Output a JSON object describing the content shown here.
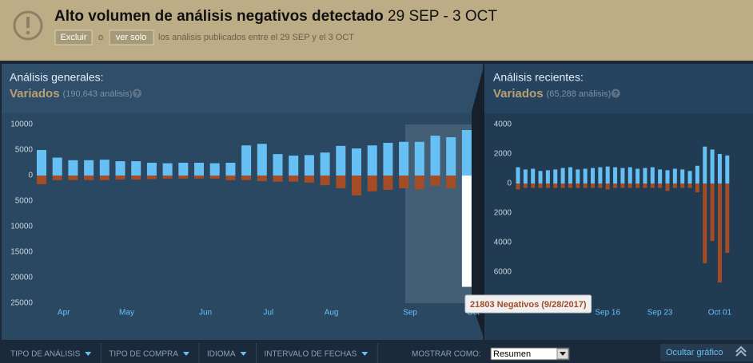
{
  "banner": {
    "title": "Alto volumen de análisis negativos detectado",
    "range": "29 SEP - 3 OCT",
    "exclude": "Excluir",
    "or": "o",
    "only": "ver solo",
    "note": "los análisis publicados entre el 29 SEP y el 3 OCT"
  },
  "chart_data": [
    {
      "type": "bar",
      "heading": "Análisis generales:",
      "rating": "Variados",
      "count": "(190,643 análisis)",
      "help": "?",
      "categories": [
        null,
        "Apr",
        null,
        null,
        null,
        "May",
        null,
        null,
        null,
        null,
        "Jun",
        null,
        null,
        null,
        "Jul",
        null,
        null,
        null,
        "Aug",
        null,
        null,
        null,
        null,
        "Sep",
        null,
        null,
        null,
        "Oct"
      ],
      "series": [
        {
          "color": "#66c0f4",
          "values": [
            5000,
            3500,
            3000,
            3000,
            3100,
            2800,
            2800,
            2500,
            2400,
            2500,
            2500,
            2400,
            2500,
            5900,
            6200,
            4200,
            3900,
            4000,
            4500,
            5800,
            5300,
            5900,
            6400,
            6600,
            6600,
            7800,
            7500,
            8900
          ]
        },
        {
          "color": "#a34c25",
          "values": [
            -1700,
            -900,
            -900,
            -900,
            -900,
            -800,
            -800,
            -700,
            -600,
            -600,
            -600,
            -600,
            -900,
            -900,
            -1100,
            -1200,
            -1200,
            -1400,
            -1900,
            -2500,
            -3900,
            -3100,
            -2800,
            -2500,
            -2700,
            -2000,
            -2500,
            -21803
          ]
        }
      ],
      "highlight": {
        "index": 27,
        "color": "#ffffff"
      },
      "ylim": [
        -25000,
        10000
      ],
      "yticks": [
        10000,
        5000,
        0,
        {
          "value": -5000,
          "label": "5000"
        },
        {
          "value": -10000,
          "label": "10000"
        },
        {
          "value": -15000,
          "label": "15000"
        },
        {
          "value": -20000,
          "label": "20000"
        },
        {
          "value": -25000,
          "label": "25000"
        }
      ],
      "tooltip": "21803 Negativos (9/28/2017)"
    },
    {
      "type": "bar",
      "heading": "Análisis recientes:",
      "rating": "Variados",
      "count": "(65,288 análisis)",
      "help": "?",
      "categories": [
        null,
        null,
        null,
        null,
        null,
        null,
        null,
        null,
        null,
        null,
        null,
        null,
        "Sep 16",
        null,
        null,
        null,
        null,
        null,
        null,
        "Sep 23",
        null,
        null,
        null,
        null,
        null,
        null,
        null,
        "Oct 01",
        null
      ],
      "series": [
        {
          "color": "#66c0f4",
          "values": [
            1100,
            950,
            1000,
            850,
            900,
            950,
            1050,
            1100,
            950,
            1000,
            1050,
            1100,
            1150,
            1100,
            1050,
            1100,
            1000,
            1050,
            1100,
            950,
            900,
            1000,
            950,
            850,
            1200,
            2500,
            2300,
            2000,
            1900
          ]
        },
        {
          "color": "#a34c25",
          "values": [
            -400,
            -300,
            -300,
            -300,
            -300,
            -300,
            -300,
            -300,
            -300,
            -300,
            -300,
            -300,
            -400,
            -300,
            -300,
            -300,
            -300,
            -300,
            -300,
            -300,
            -500,
            -300,
            -300,
            -300,
            -600,
            -5400,
            -3900,
            -6700,
            -4700
          ]
        }
      ],
      "ylim": [
        -7000,
        4000
      ],
      "yticks": [
        4000,
        2000,
        0,
        {
          "value": -2000,
          "label": "2000"
        },
        {
          "value": -4000,
          "label": "4000"
        },
        {
          "value": -6000,
          "label": "6000"
        }
      ]
    }
  ],
  "filters": {
    "items": [
      "TIPO DE ANÁLISIS",
      "TIPO DE COMPRA",
      "IDIOMA",
      "INTERVALO DE FECHAS"
    ],
    "show_as": "MOSTRAR COMO:",
    "select": "Resumen",
    "hide": "Ocultar gráfico"
  }
}
